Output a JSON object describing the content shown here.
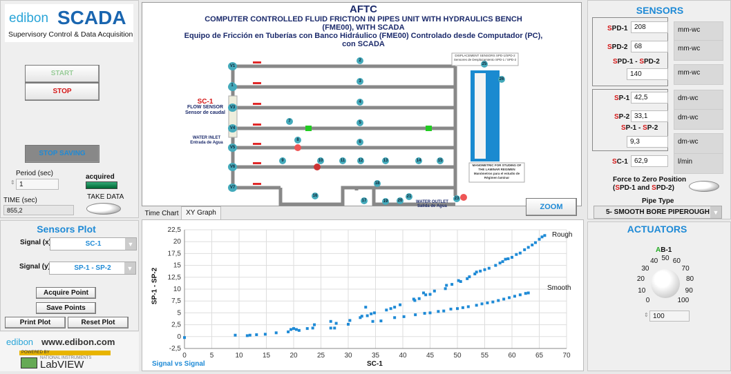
{
  "left": {
    "logo": {
      "brand": "edibon",
      "product": "SCADA",
      "subtitle": "Supervisory Control & Data Acquisition"
    },
    "start_label": "START",
    "stop_label": "STOP",
    "stop_saving_label": "STOP SAVING",
    "period_label": "Period (sec)",
    "period_value": "1",
    "acquired_label": "acquired",
    "time_label": "TIME (sec)",
    "time_value": "855,2",
    "take_data_label": "TAKE DATA"
  },
  "sensors_plot": {
    "title": "Sensors Plot",
    "signal_x_label": "Signal (x)",
    "signal_x_value": "SC-1",
    "signal_y_label": "Signal (y)",
    "signal_y_value": "SP-1 - SP-2",
    "acquire_point": "Acquire Point",
    "save_points": "Save Points",
    "print_plot": "Print Plot",
    "reset_plot": "Reset Plot"
  },
  "footer": {
    "edibon_url": "www.edibon.com",
    "labview": "LabVIEW",
    "powered_by": "POWERED BY",
    "ni": "NATIONAL INSTRUMENTS"
  },
  "diagram": {
    "code": "AFTC",
    "title_en": "COMPUTER CONTROLLED FLUID FRICTION IN PIPES UNIT WITH HYDRAULICS BENCH (FME00), WITH SCADA",
    "title_es": "Equipo de Fricción en Tuberías con Banco Hidráulico (FME00) Controlado desde Computador (PC), con SCADA",
    "flow_sensor_tag": "SC-1",
    "flow_sensor_en": "FLOW SENSOR",
    "flow_sensor_es": "Sensor de caudal",
    "water_inlet_en": "WATER INLET",
    "water_inlet_es": "Entrada de Agua",
    "water_outlet_en": "WATER OUTLET",
    "water_outlet_es": "Salida de Agua",
    "displacement_en": "DISPLACEMENT SENSORS  SPD-1/SPD-2",
    "displacement_es": "Sensores de Desplazamiento SPD-1 / SPD-2",
    "manometric_en": "MANOMETRIC FOR STUDING OF THE LAMINAR REGIMEN",
    "manometric_es": "Manómetros para el estudio de Régimen laminar",
    "valves": [
      "V1",
      "V2",
      "V3",
      "V4",
      "V5",
      "V6",
      "V7"
    ],
    "numbers": [
      "1",
      "2",
      "3",
      "4",
      "5",
      "6",
      "7",
      "8",
      "9",
      "10",
      "11",
      "12",
      "13",
      "14",
      "15",
      "16",
      "17",
      "18",
      "19",
      "20",
      "21",
      "22",
      "23",
      "25",
      "26"
    ],
    "zoom_label": "ZOOM"
  },
  "tabs": [
    {
      "label": "Time Chart",
      "active": false
    },
    {
      "label": "XY Graph",
      "active": true
    }
  ],
  "sensors": {
    "title": "SENSORS",
    "spd1": {
      "label": "SPD-1",
      "value": "208",
      "unit": "mm-wc"
    },
    "spd2": {
      "label": "SPD-2",
      "value": "68",
      "unit": "mm-wc"
    },
    "spd_diff": {
      "label": "SPD-1 - SPD-2",
      "value": "140",
      "unit": "mm-wc"
    },
    "sp1": {
      "label": "SP-1",
      "value": "42,5",
      "unit": "dm-wc"
    },
    "sp2": {
      "label": "SP-2",
      "value": "33,1",
      "unit": "dm-wc"
    },
    "sp_diff": {
      "label": "SP-1 - SP-2",
      "value": "9,3",
      "unit": "dm-wc"
    },
    "sc1": {
      "label": "SC-1",
      "value": "62,9",
      "unit": "l/min"
    },
    "force_zero_label": "Force to Zero Position",
    "force_zero_sub": "(SPD-1 and SPD-2)",
    "pipe_type_label": "Pipe Type",
    "pipe_type_value": "5- SMOOTH BORE PIPEROUGH"
  },
  "actuators": {
    "title": "ACTUATORS",
    "knob_label": "AB-1",
    "knob_value": "100",
    "knob_ticks": [
      "0",
      "10",
      "20",
      "30",
      "40",
      "50",
      "60",
      "70",
      "80",
      "90",
      "100"
    ],
    "knob_level": 100
  },
  "colors": {
    "accent": "#1e8ad6",
    "red": "#d41616",
    "points": "#1e8ad6"
  },
  "chart_data": {
    "type": "scatter",
    "title": "",
    "legend_name": "Signal vs Signal",
    "xlabel": "SC-1",
    "ylabel": "SP-1 - SP-2",
    "xlim": [
      0,
      70
    ],
    "ylim": [
      -2.5,
      22.5
    ],
    "grid": true,
    "xticks": [
      "0",
      "5",
      "10",
      "15",
      "20",
      "25",
      "30",
      "35",
      "40",
      "45",
      "50",
      "55",
      "60",
      "65",
      "70"
    ],
    "yticks": [
      "-2,5",
      "0",
      "2,5",
      "5",
      "7,5",
      "10",
      "12,5",
      "15",
      "17,5",
      "20",
      "22,5"
    ],
    "annotations": [
      "Rough",
      "Smooth"
    ],
    "series": [
      {
        "name": "Rough",
        "points": [
          [
            0,
            -0.2
          ],
          [
            9.3,
            0.3
          ],
          [
            11.5,
            0.2
          ],
          [
            12,
            0.3
          ],
          [
            13.2,
            0.4
          ],
          [
            14.8,
            0.5
          ],
          [
            16.8,
            0.8
          ],
          [
            19,
            1
          ],
          [
            19.5,
            1.5
          ],
          [
            20,
            1.7
          ],
          [
            20.5,
            1.5
          ],
          [
            21,
            1.3
          ],
          [
            22.5,
            1.7
          ],
          [
            23.5,
            1.8
          ],
          [
            23.8,
            2.5
          ],
          [
            26.8,
            1.8
          ],
          [
            26.8,
            3.2
          ],
          [
            27.5,
            1.8
          ],
          [
            27.8,
            2.8
          ],
          [
            30,
            2.6
          ],
          [
            30.3,
            3.4
          ],
          [
            32.2,
            4
          ],
          [
            32.5,
            4.3
          ],
          [
            33.2,
            6.2
          ],
          [
            33.5,
            4.4
          ],
          [
            34.2,
            4.8
          ],
          [
            34.8,
            5
          ],
          [
            37,
            5.6
          ],
          [
            37.8,
            5.9
          ],
          [
            38.5,
            6.2
          ],
          [
            39.5,
            6.7
          ],
          [
            42,
            7.9
          ],
          [
            42.2,
            7.6
          ],
          [
            43,
            8
          ],
          [
            43.8,
            9.2
          ],
          [
            44.2,
            8.8
          ],
          [
            45,
            8.9
          ],
          [
            45.8,
            9.6
          ],
          [
            47.8,
            10.1
          ],
          [
            48,
            10.8
          ],
          [
            49,
            11
          ],
          [
            50.2,
            11.8
          ],
          [
            50.6,
            11.6
          ],
          [
            51.8,
            12.2
          ],
          [
            52.2,
            12.6
          ],
          [
            53.2,
            13.2
          ],
          [
            53.5,
            13.6
          ],
          [
            54.2,
            13.8
          ],
          [
            55,
            14.1
          ],
          [
            55.8,
            14.4
          ],
          [
            57,
            15
          ],
          [
            57.8,
            15.5
          ],
          [
            58.3,
            15.8
          ],
          [
            58.8,
            16.3
          ],
          [
            59.3,
            16.4
          ],
          [
            60,
            16.7
          ],
          [
            60.8,
            17.3
          ],
          [
            61.5,
            17.6
          ],
          [
            62.3,
            18.3
          ],
          [
            63,
            18.8
          ],
          [
            63.7,
            19.3
          ],
          [
            64.3,
            19.8
          ],
          [
            65,
            20.5
          ],
          [
            65.5,
            21
          ],
          [
            66,
            21.3
          ]
        ]
      },
      {
        "name": "Smooth",
        "points": [
          [
            34.5,
            3.2
          ],
          [
            36,
            3.3
          ],
          [
            38.5,
            4
          ],
          [
            40.2,
            4.2
          ],
          [
            42.3,
            4.6
          ],
          [
            44,
            4.9
          ],
          [
            45,
            5
          ],
          [
            46.5,
            5.3
          ],
          [
            47.5,
            5.4
          ],
          [
            48.8,
            5.8
          ],
          [
            50,
            5.9
          ],
          [
            51,
            6.1
          ],
          [
            52,
            6.3
          ],
          [
            53.5,
            6.6
          ],
          [
            54.5,
            6.9
          ],
          [
            55.5,
            7.1
          ],
          [
            56.5,
            7.3
          ],
          [
            57.5,
            7.6
          ],
          [
            58.5,
            7.9
          ],
          [
            59.5,
            8.2
          ],
          [
            60.5,
            8.5
          ],
          [
            61.5,
            8.8
          ],
          [
            62.5,
            9.1
          ],
          [
            63,
            9.2
          ]
        ]
      }
    ]
  }
}
